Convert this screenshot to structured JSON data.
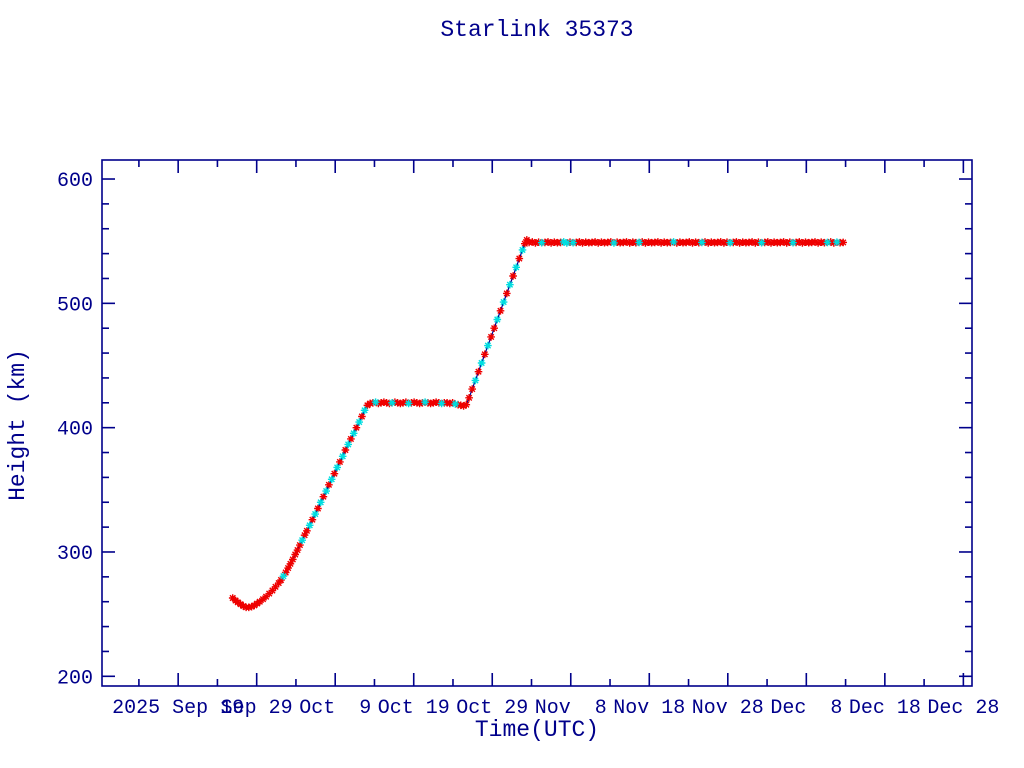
{
  "page": {
    "background_color": "#ffffff",
    "accent_text_color": "#00008b"
  },
  "chart_data": {
    "type": "line",
    "title": "Starlink 35373",
    "xlabel": "Time(UTC)",
    "ylabel": "Height (km)",
    "legend": null,
    "grid": false,
    "x_unit": "days since 2025 Sep 19 (0 = Sep 19)",
    "x_range": [
      -9.7,
      101.1
    ],
    "y_range": [
      192.2,
      615.3
    ],
    "x_ticks": [
      {
        "day": 0,
        "label": "2025 Sep 19"
      },
      {
        "day": 10,
        "label": "Sep 29"
      },
      {
        "day": 20,
        "label": "Oct  9"
      },
      {
        "day": 30,
        "label": "Oct 19"
      },
      {
        "day": 40,
        "label": "Oct 29"
      },
      {
        "day": 50,
        "label": "Nov  8"
      },
      {
        "day": 60,
        "label": "Nov 18"
      },
      {
        "day": 70,
        "label": "Nov 28"
      },
      {
        "day": 80,
        "label": "Dec  8"
      },
      {
        "day": 90,
        "label": "Dec 18"
      },
      {
        "day": 100,
        "label": "Dec 28"
      }
    ],
    "x_minor_ticks": [
      -5,
      5,
      15,
      25,
      35,
      45,
      55,
      65,
      75,
      85,
      95
    ],
    "y_ticks": [
      200,
      300,
      400,
      500,
      600
    ],
    "y_minor_ticks": [
      220,
      240,
      260,
      280,
      320,
      340,
      360,
      380,
      420,
      440,
      460,
      480,
      520,
      540,
      560,
      580
    ],
    "colors": {
      "axis": "#00008b",
      "text": "#00008b",
      "line": "#000090",
      "marker_red": "#ee0000",
      "marker_cyan": "#00dde0"
    },
    "marker": "asterisk",
    "series": [
      {
        "name": "height",
        "note": "points are [day, height_km] red markers; third element 1 marks cyan markers",
        "points": [
          [
            6.95,
            263
          ],
          [
            7.3,
            261
          ],
          [
            7.6,
            259.5
          ],
          [
            7.95,
            258
          ],
          [
            8.3,
            256.5
          ],
          [
            8.65,
            255.5
          ],
          [
            9.0,
            255.5
          ],
          [
            9.35,
            256
          ],
          [
            9.7,
            257
          ],
          [
            10.05,
            258.5
          ],
          [
            10.4,
            260
          ],
          [
            10.8,
            262
          ],
          [
            11.2,
            264
          ],
          [
            11.6,
            266.5
          ],
          [
            12.0,
            269
          ],
          [
            12.4,
            272
          ],
          [
            12.8,
            275
          ],
          [
            13.1,
            277.5
          ],
          [
            13.4,
            280.5,
            1
          ],
          [
            13.7,
            283.5
          ],
          [
            14.0,
            287
          ],
          [
            14.3,
            290.5
          ],
          [
            14.6,
            294
          ],
          [
            14.9,
            298
          ],
          [
            15.2,
            301.5
          ],
          [
            15.5,
            305.5
          ],
          [
            15.8,
            309.5,
            1
          ],
          [
            16.1,
            313.5
          ],
          [
            16.4,
            317
          ],
          [
            16.75,
            321.5,
            1
          ],
          [
            17.1,
            326
          ],
          [
            17.45,
            330.5,
            1
          ],
          [
            17.8,
            335
          ],
          [
            18.15,
            340,
            1
          ],
          [
            18.5,
            344.5
          ],
          [
            18.85,
            349,
            1
          ],
          [
            19.2,
            354
          ],
          [
            19.55,
            358.5,
            1
          ],
          [
            19.9,
            363
          ],
          [
            20.25,
            368,
            1
          ],
          [
            20.6,
            372.5
          ],
          [
            20.95,
            377,
            1
          ],
          [
            21.3,
            382
          ],
          [
            21.65,
            386.5,
            1
          ],
          [
            22.0,
            391
          ],
          [
            22.35,
            395.5,
            1
          ],
          [
            22.7,
            400
          ],
          [
            23.05,
            404.5,
            1
          ],
          [
            23.4,
            409
          ],
          [
            23.75,
            414,
            1
          ],
          [
            24.1,
            418
          ],
          [
            24.45,
            419.5
          ],
          [
            24.8,
            420
          ],
          [
            25.15,
            420.5,
            1
          ],
          [
            25.5,
            419.5
          ],
          [
            25.85,
            420
          ],
          [
            26.2,
            420.5
          ],
          [
            26.55,
            420
          ],
          [
            26.9,
            419.5
          ],
          [
            27.25,
            420,
            1
          ],
          [
            27.6,
            420.5
          ],
          [
            27.95,
            420
          ],
          [
            28.3,
            419.5
          ],
          [
            28.65,
            420
          ],
          [
            29.0,
            420.5
          ],
          [
            29.35,
            419.5,
            1
          ],
          [
            29.7,
            420
          ],
          [
            30.05,
            420.5
          ],
          [
            30.4,
            420
          ],
          [
            30.75,
            419.5
          ],
          [
            31.1,
            420
          ],
          [
            31.45,
            420.5,
            1
          ],
          [
            31.8,
            420
          ],
          [
            32.15,
            419.5
          ],
          [
            32.5,
            420
          ],
          [
            32.85,
            420.5
          ],
          [
            33.2,
            420
          ],
          [
            33.55,
            419.5,
            1
          ],
          [
            33.9,
            420
          ],
          [
            34.25,
            420
          ],
          [
            34.6,
            419.5
          ],
          [
            34.95,
            420
          ],
          [
            35.3,
            419,
            1
          ],
          [
            35.65,
            418.5
          ],
          [
            36.0,
            418
          ],
          [
            36.35,
            417.5
          ],
          [
            36.7,
            418.5
          ],
          [
            37.05,
            424
          ],
          [
            37.45,
            431
          ],
          [
            37.85,
            438,
            1
          ],
          [
            38.25,
            445
          ],
          [
            38.65,
            452,
            1
          ],
          [
            39.05,
            459
          ],
          [
            39.45,
            466,
            1
          ],
          [
            39.85,
            473
          ],
          [
            40.25,
            480
          ],
          [
            40.65,
            487,
            1
          ],
          [
            41.05,
            494
          ],
          [
            41.45,
            501,
            1
          ],
          [
            41.85,
            508
          ],
          [
            42.25,
            515,
            1
          ],
          [
            42.65,
            522
          ],
          [
            43.05,
            529,
            1
          ],
          [
            43.45,
            536
          ],
          [
            43.85,
            543,
            1
          ],
          [
            44.15,
            548
          ],
          [
            44.4,
            551
          ],
          [
            44.7,
            549
          ],
          [
            45.1,
            549.4
          ],
          [
            45.5,
            548.6
          ],
          [
            45.9,
            549.2
          ],
          [
            46.3,
            548.8,
            1
          ],
          [
            46.7,
            549
          ],
          [
            47.1,
            549.4
          ],
          [
            47.5,
            548.6
          ],
          [
            47.9,
            549.2
          ],
          [
            48.3,
            548.8
          ],
          [
            48.7,
            549
          ],
          [
            49.1,
            549.4,
            1
          ],
          [
            49.5,
            548.6,
            1
          ],
          [
            49.9,
            549.2
          ],
          [
            50.3,
            548.8,
            1
          ],
          [
            50.7,
            549
          ],
          [
            51.1,
            549.4
          ],
          [
            51.5,
            548.6
          ],
          [
            51.9,
            549.2
          ],
          [
            52.3,
            548.8
          ],
          [
            52.7,
            549
          ],
          [
            53.1,
            549.4
          ],
          [
            53.5,
            548.6
          ],
          [
            53.9,
            549.2
          ],
          [
            54.3,
            548.8
          ],
          [
            54.7,
            549
          ],
          [
            55.1,
            549.4
          ],
          [
            55.5,
            548.6,
            1
          ],
          [
            55.9,
            549.2
          ],
          [
            56.3,
            548.8
          ],
          [
            56.7,
            549
          ],
          [
            57.1,
            549.4
          ],
          [
            57.5,
            548.6
          ],
          [
            57.9,
            549.2
          ],
          [
            58.3,
            548.8
          ],
          [
            58.7,
            549,
            1
          ],
          [
            59.1,
            549.4
          ],
          [
            59.5,
            548.6
          ],
          [
            59.9,
            549.2
          ],
          [
            60.3,
            548.8
          ],
          [
            60.7,
            549
          ],
          [
            61.1,
            549.4
          ],
          [
            61.5,
            548.6
          ],
          [
            61.9,
            549.2
          ],
          [
            62.3,
            548.8
          ],
          [
            62.7,
            549
          ],
          [
            63.1,
            549.4,
            1
          ],
          [
            63.5,
            548.6
          ],
          [
            63.9,
            549.2
          ],
          [
            64.3,
            548.8
          ],
          [
            64.7,
            549
          ],
          [
            65.1,
            549.4
          ],
          [
            65.5,
            548.6
          ],
          [
            65.9,
            549.2
          ],
          [
            66.3,
            548.8
          ],
          [
            66.7,
            549,
            1
          ],
          [
            67.1,
            549.4
          ],
          [
            67.5,
            548.6
          ],
          [
            67.9,
            549.2
          ],
          [
            68.3,
            548.8
          ],
          [
            68.7,
            549
          ],
          [
            69.1,
            549.4
          ],
          [
            69.5,
            548.6
          ],
          [
            69.9,
            549.2
          ],
          [
            70.3,
            548.8,
            1
          ],
          [
            70.7,
            549
          ],
          [
            71.1,
            549.4
          ],
          [
            71.5,
            548.6
          ],
          [
            71.9,
            549.2
          ],
          [
            72.3,
            548.8
          ],
          [
            72.7,
            549
          ],
          [
            73.1,
            549.4
          ],
          [
            73.5,
            548.6
          ],
          [
            73.9,
            549.2
          ],
          [
            74.3,
            548.8,
            1
          ],
          [
            74.7,
            549
          ],
          [
            75.1,
            549.4
          ],
          [
            75.5,
            548.6
          ],
          [
            75.9,
            549.2
          ],
          [
            76.3,
            548.8
          ],
          [
            76.7,
            549
          ],
          [
            77.1,
            549.4
          ],
          [
            77.5,
            548.6
          ],
          [
            77.9,
            549.2
          ],
          [
            78.3,
            548.8,
            1
          ],
          [
            78.7,
            549
          ],
          [
            79.1,
            549.4
          ],
          [
            79.5,
            548.6
          ],
          [
            79.9,
            549.2
          ],
          [
            80.3,
            548.8
          ],
          [
            80.7,
            549
          ],
          [
            81.1,
            549.4
          ],
          [
            81.5,
            548.6
          ],
          [
            81.9,
            549.2
          ],
          [
            82.3,
            548.8
          ],
          [
            82.7,
            549,
            1
          ],
          [
            83.1,
            549.4
          ],
          [
            83.5,
            548.6
          ],
          [
            83.9,
            549.2,
            1
          ],
          [
            84.3,
            548.8
          ],
          [
            84.7,
            549
          ]
        ]
      }
    ],
    "annotations": {
      "summary": "Satellite altitude profile: first data ~Sep 26 at 263 km, decays to ~255 km by Sep 28, climbs to 420 km parking orbit (Oct 13 - Oct 26, slight dip to ~418 km at the end), second raise to ~549 km reached ~Nov 3, then constant ~549 km until last data point ~Dec 12."
    }
  }
}
